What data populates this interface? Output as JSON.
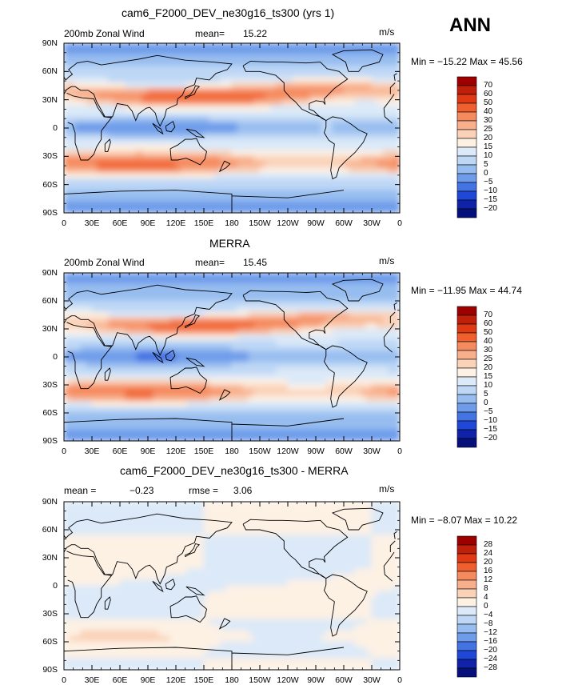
{
  "season": "ANN",
  "units": "m/s",
  "panels": [
    {
      "title": "cam6_F2000_DEV_ne30g16_ts300 (yrs 1)",
      "left_label": "200mb Zonal Wind",
      "stat1_label": "mean=",
      "stat1_value": "15.22",
      "stat2_label": "",
      "stat2_value": "",
      "units": "m/s",
      "minmax": "Min = −15.22 Max =  45.56",
      "colorbar_levels": [
        "70",
        "60",
        "50",
        "40",
        "30",
        "25",
        "20",
        "15",
        "10",
        "5",
        "0",
        "−5",
        "−10",
        "−15",
        "−20"
      ]
    },
    {
      "title": "MERRA",
      "left_label": "200mb Zonal Wind",
      "stat1_label": "mean=",
      "stat1_value": "15.45",
      "stat2_label": "",
      "stat2_value": "",
      "units": "m/s",
      "minmax": "Min = −11.95 Max =  44.74",
      "colorbar_levels": [
        "70",
        "60",
        "50",
        "40",
        "30",
        "25",
        "20",
        "15",
        "10",
        "5",
        "0",
        "−5",
        "−10",
        "−15",
        "−20"
      ]
    },
    {
      "title": "cam6_F2000_DEV_ne30g16_ts300 - MERRA",
      "left_label": "",
      "stat1_label": "mean =",
      "stat1_value": "−0.23",
      "stat2_label": "rmse =",
      "stat2_value": "3.06",
      "units": "m/s",
      "minmax": "Min =  −8.07 Max =  10.22",
      "colorbar_levels": [
        "28",
        "24",
        "20",
        "16",
        "12",
        "8",
        "4",
        "0",
        "−4",
        "−8",
        "−12",
        "−16",
        "−20",
        "−24",
        "−28"
      ]
    }
  ],
  "lat_ticks": [
    "90N",
    "60N",
    "30N",
    "0",
    "30S",
    "60S",
    "90S"
  ],
  "lon_ticks": [
    "0",
    "30E",
    "60E",
    "90E",
    "120E",
    "150E",
    "180",
    "150W",
    "120W",
    "90W",
    "60W",
    "30W",
    "0"
  ],
  "colors": {
    "full_palette": [
      "#9e0000",
      "#c0200a",
      "#e03a14",
      "#f0602e",
      "#f58a5e",
      "#f8b08c",
      "#fad2b8",
      "#fdf1e4",
      "#dbe9f8",
      "#bdd7f5",
      "#97bdf0",
      "#6e9cea",
      "#4473e3",
      "#2048d8",
      "#0f22a8",
      "#06107a"
    ],
    "diff_palette": [
      "#9e0000",
      "#c0200a",
      "#e03a14",
      "#f0602e",
      "#f58a5e",
      "#f8b08c",
      "#fad2b8",
      "#fdf1e4",
      "#dbe9f8",
      "#bdd7f5",
      "#97bdf0",
      "#6e9cea",
      "#4473e3",
      "#2048d8",
      "#0f22a8",
      "#06107a"
    ]
  }
}
